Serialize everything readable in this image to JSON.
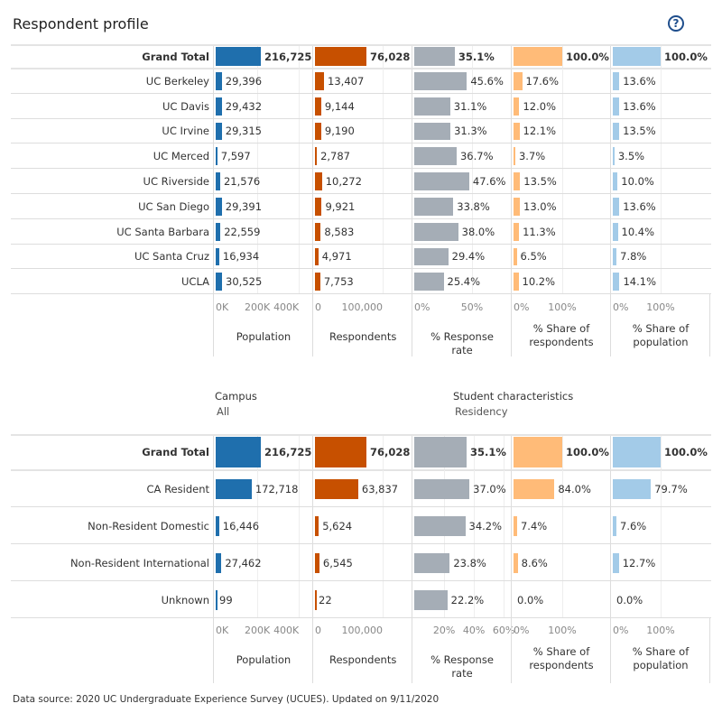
{
  "title": "Respondent profile",
  "help_icon": "question-circle-icon",
  "colors": {
    "population": "#1f6fad",
    "respondents": "#c75000",
    "rate": "#a5adb6",
    "share_resp": "#ffbb78",
    "share_pop": "#a3cbe8"
  },
  "columns": [
    "Population",
    "Respondents",
    "% Response rate",
    "% Share of respondents",
    "% Share of population"
  ],
  "top": {
    "rows": [
      {
        "label": "Grand Total",
        "population": "216,725",
        "respondents": "76,028",
        "rate": "35.1%",
        "share_resp": "100.0%",
        "share_pop": "100.0%",
        "v": [
          216725,
          76028,
          35.1,
          100,
          100
        ]
      },
      {
        "label": "UC Berkeley",
        "population": "29,396",
        "respondents": "13,407",
        "rate": "45.6%",
        "share_resp": "17.6%",
        "share_pop": "13.6%",
        "v": [
          29396,
          13407,
          45.6,
          17.6,
          13.6
        ]
      },
      {
        "label": "UC Davis",
        "population": "29,432",
        "respondents": "9,144",
        "rate": "31.1%",
        "share_resp": "12.0%",
        "share_pop": "13.6%",
        "v": [
          29432,
          9144,
          31.1,
          12.0,
          13.6
        ]
      },
      {
        "label": "UC Irvine",
        "population": "29,315",
        "respondents": "9,190",
        "rate": "31.3%",
        "share_resp": "12.1%",
        "share_pop": "13.5%",
        "v": [
          29315,
          9190,
          31.3,
          12.1,
          13.5
        ]
      },
      {
        "label": "UC Merced",
        "population": "7,597",
        "respondents": "2,787",
        "rate": "36.7%",
        "share_resp": "3.7%",
        "share_pop": "3.5%",
        "v": [
          7597,
          2787,
          36.7,
          3.7,
          3.5
        ]
      },
      {
        "label": "UC Riverside",
        "population": "21,576",
        "respondents": "10,272",
        "rate": "47.6%",
        "share_resp": "13.5%",
        "share_pop": "10.0%",
        "v": [
          21576,
          10272,
          47.6,
          13.5,
          10.0
        ]
      },
      {
        "label": "UC San Diego",
        "population": "29,391",
        "respondents": "9,921",
        "rate": "33.8%",
        "share_resp": "13.0%",
        "share_pop": "13.6%",
        "v": [
          29391,
          9921,
          33.8,
          13.0,
          13.6
        ]
      },
      {
        "label": "UC Santa Barbara",
        "population": "22,559",
        "respondents": "8,583",
        "rate": "38.0%",
        "share_resp": "11.3%",
        "share_pop": "10.4%",
        "v": [
          22559,
          8583,
          38.0,
          11.3,
          10.4
        ]
      },
      {
        "label": "UC Santa Cruz",
        "population": "16,934",
        "respondents": "4,971",
        "rate": "29.4%",
        "share_resp": "6.5%",
        "share_pop": "7.8%",
        "v": [
          16934,
          4971,
          29.4,
          6.5,
          7.8
        ]
      },
      {
        "label": "UCLA",
        "population": "30,525",
        "respondents": "7,753",
        "rate": "25.4%",
        "share_resp": "10.2%",
        "share_pop": "14.1%",
        "v": [
          30525,
          7753,
          25.4,
          10.2,
          14.1
        ]
      }
    ],
    "ticks": [
      [
        "0K",
        "200K",
        "400K"
      ],
      [
        "0",
        "100,000"
      ],
      [
        "0%",
        "50%"
      ],
      [
        "0%",
        "100%"
      ],
      [
        "0%",
        "100%"
      ]
    ],
    "tickvals": [
      [
        0,
        200000,
        400000
      ],
      [
        0,
        100000
      ],
      [
        0,
        50
      ],
      [
        0,
        100
      ],
      [
        0,
        100
      ]
    ]
  },
  "filters": {
    "campus_label": "Campus",
    "campus_value": "All",
    "char_label": "Student characteristics",
    "char_value": "Residency"
  },
  "bottom": {
    "rows": [
      {
        "label": "Grand Total",
        "population": "216,725",
        "respondents": "76,028",
        "rate": "35.1%",
        "share_resp": "100.0%",
        "share_pop": "100.0%",
        "v": [
          216725,
          76028,
          35.1,
          100,
          100
        ]
      },
      {
        "label": "CA Resident",
        "population": "172,718",
        "respondents": "63,837",
        "rate": "37.0%",
        "share_resp": "84.0%",
        "share_pop": "79.7%",
        "v": [
          172718,
          63837,
          37.0,
          84.0,
          79.7
        ]
      },
      {
        "label": "Non-Resident Domestic",
        "population": "16,446",
        "respondents": "5,624",
        "rate": "34.2%",
        "share_resp": "7.4%",
        "share_pop": "7.6%",
        "v": [
          16446,
          5624,
          34.2,
          7.4,
          7.6
        ]
      },
      {
        "label": "Non-Resident International",
        "population": "27,462",
        "respondents": "6,545",
        "rate": "23.8%",
        "share_resp": "8.6%",
        "share_pop": "12.7%",
        "v": [
          27462,
          6545,
          23.8,
          8.6,
          12.7
        ]
      },
      {
        "label": "Unknown",
        "population": "99",
        "respondents": "22",
        "rate": "22.2%",
        "share_resp": "0.0%",
        "share_pop": "0.0%",
        "v": [
          99,
          22,
          22.2,
          0,
          0
        ]
      }
    ],
    "ticks": [
      [
        "0K",
        "200K",
        "400K"
      ],
      [
        "0",
        "100,000"
      ],
      [
        "20%",
        "40%",
        "60%"
      ],
      [
        "0%",
        "100%"
      ],
      [
        "0%",
        "100%"
      ]
    ],
    "tickvals": [
      [
        0,
        200000,
        400000
      ],
      [
        0,
        100000
      ],
      [
        20,
        40,
        60
      ],
      [
        0,
        100
      ],
      [
        0,
        100
      ]
    ]
  },
  "source": "Data source: 2020 UC Undergraduate Experience Survey (UCUES). Updated on 9/11/2020"
}
